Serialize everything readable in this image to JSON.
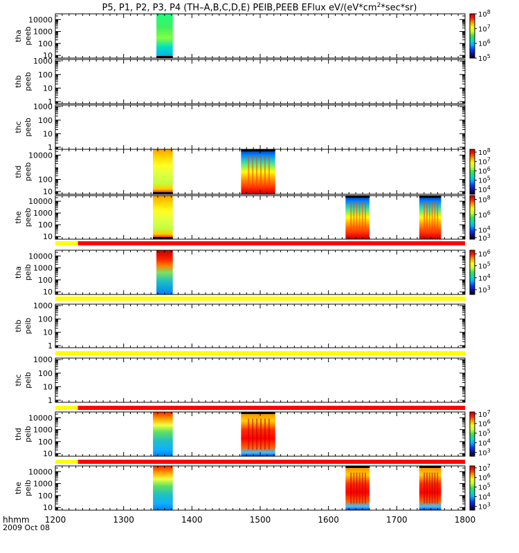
{
  "chart_data": {
    "type": "heatmap",
    "title_parts": [
      "P5, P1, P2, P3, P4 (TH–A,B,C,D,E) PEIB,PEEB EFlux eV/(eV*cm",
      "2",
      "*sec*sr)"
    ],
    "x_tick_labels": [
      "1200",
      "1300",
      "1400",
      "1500",
      "1600",
      "1700",
      "1800"
    ],
    "x_ticks": [
      1200,
      1300,
      1400,
      1500,
      1600,
      1700,
      1800
    ],
    "xlim": [
      1200,
      1800
    ],
    "x_unit_label": "hhmm",
    "date_label": "2009 Oct 08",
    "y_scale": "log",
    "palette": [
      "#000000",
      "#1010a0",
      "#0040ff",
      "#00b0ff",
      "#00e0c0",
      "#40e040",
      "#c0ff40",
      "#ffff00",
      "#ffa000",
      "#ff2000",
      "#c00000"
    ],
    "panels": [
      {
        "id": "tha-peeb",
        "probe": "tha",
        "instrument": "peeb",
        "y_tick_labels": [
          "10000",
          "1000",
          "100",
          "10"
        ],
        "y_ticks": [
          10000,
          1000,
          100,
          10
        ],
        "ylim": [
          6,
          30000
        ],
        "colorbar": {
          "labels": [
            "10",
            "8",
            "10",
            "7",
            "10",
            "6",
            "10",
            "5"
          ],
          "ticks": [
            8,
            7,
            6,
            5
          ],
          "range": [
            5,
            8
          ]
        },
        "mode_bar": null,
        "blocks": [
          {
            "start": 1348,
            "end": 1372,
            "style": "electron"
          }
        ]
      },
      {
        "id": "thb-peeb",
        "probe": "thb",
        "instrument": "peeb",
        "y_tick_labels": [
          "1000",
          "100",
          "10",
          "1"
        ],
        "y_ticks": [
          1000,
          100,
          10,
          1
        ],
        "ylim": [
          0.7,
          1300
        ],
        "colorbar": null,
        "mode_bar": null,
        "blocks": []
      },
      {
        "id": "thc-peeb",
        "probe": "thc",
        "instrument": "peeb",
        "y_tick_labels": [
          "1000",
          "100",
          "10",
          "1"
        ],
        "y_ticks": [
          1000,
          100,
          10,
          1
        ],
        "ylim": [
          0.7,
          1300
        ],
        "colorbar": null,
        "mode_bar": null,
        "blocks": []
      },
      {
        "id": "thd-peeb",
        "probe": "thd",
        "instrument": "peeb",
        "y_tick_labels": [
          "10000",
          "100",
          "10"
        ],
        "y_ticks": [
          10000,
          100,
          10
        ],
        "ylim": [
          6,
          30000
        ],
        "colorbar": {
          "labels": [
            "10",
            "8",
            "10",
            "7",
            "10",
            "6",
            "10",
            "5",
            "10",
            "4"
          ],
          "ticks": [
            8,
            7,
            6,
            5,
            4
          ],
          "range": [
            3.5,
            8.3
          ]
        },
        "mode_bar": null,
        "blocks": [
          {
            "start": 1343,
            "end": 1372,
            "style": "electron"
          },
          {
            "start": 1472,
            "end": 1522,
            "style": "burst"
          }
        ]
      },
      {
        "id": "the-peeb",
        "probe": "the",
        "instrument": "peeb",
        "y_tick_labels": [
          "10000",
          "1000",
          "100",
          "10"
        ],
        "y_ticks": [
          10000,
          1000,
          100,
          10
        ],
        "ylim": [
          6,
          30000
        ],
        "colorbar": {
          "labels": [
            "10",
            "8",
            "10",
            "6",
            "10",
            "4",
            "10",
            "3"
          ],
          "ticks": [
            8,
            6,
            4,
            3
          ],
          "range": [
            2.8,
            8.5
          ]
        },
        "mode_bar": {
          "segments": [
            {
              "start": 1200,
              "end": 1233,
              "color": "#ffff00"
            },
            {
              "start": 1233,
              "end": 1800,
              "color": "#ff0000"
            }
          ]
        },
        "blocks": [
          {
            "start": 1343,
            "end": 1372,
            "style": "electron"
          },
          {
            "start": 1625,
            "end": 1660,
            "style": "burst"
          },
          {
            "start": 1733,
            "end": 1765,
            "style": "burst"
          }
        ]
      },
      {
        "id": "tha-peib",
        "probe": "tha",
        "instrument": "peib",
        "y_tick_labels": [
          "10000",
          "1000",
          "100",
          "10"
        ],
        "y_ticks": [
          10000,
          1000,
          100,
          10
        ],
        "ylim": [
          6,
          30000
        ],
        "colorbar": {
          "labels": [
            "10",
            "6",
            "10",
            "5",
            "10",
            "4",
            "10",
            "3"
          ],
          "ticks": [
            6,
            5,
            4,
            3
          ],
          "range": [
            2.6,
            6.3
          ]
        },
        "mode_bar": {
          "segments": [
            {
              "start": 1200,
              "end": 1800,
              "color": "#ffff00"
            }
          ]
        },
        "blocks": [
          {
            "start": 1348,
            "end": 1372,
            "style": "ion"
          }
        ]
      },
      {
        "id": "thb-peib",
        "probe": "thb",
        "instrument": "peib",
        "y_tick_labels": [
          "1000",
          "100",
          "10",
          "1"
        ],
        "y_ticks": [
          1000,
          100,
          10,
          1
        ],
        "ylim": [
          0.7,
          1300
        ],
        "colorbar": null,
        "mode_bar": {
          "segments": [
            {
              "start": 1200,
              "end": 1800,
              "color": "#ffff00"
            }
          ]
        },
        "blocks": []
      },
      {
        "id": "thc-peib",
        "probe": "thc",
        "instrument": "peib",
        "y_tick_labels": [
          "1000",
          "100",
          "10",
          "1"
        ],
        "y_ticks": [
          1000,
          100,
          10,
          1
        ],
        "ylim": [
          0.7,
          1300
        ],
        "colorbar": null,
        "mode_bar": null,
        "blocks": []
      },
      {
        "id": "thd-peib",
        "probe": "thd",
        "instrument": "peib",
        "y_tick_labels": [
          "10000",
          "1000",
          "100",
          "10"
        ],
        "y_ticks": [
          10000,
          1000,
          100,
          10
        ],
        "ylim": [
          6,
          30000
        ],
        "colorbar": {
          "labels": [
            "10",
            "7",
            "10",
            "6",
            "10",
            "5",
            "10",
            "4",
            "10",
            "3"
          ],
          "ticks": [
            7,
            6,
            5,
            4,
            3
          ],
          "range": [
            2.6,
            7.2
          ]
        },
        "mode_bar": {
          "segments": [
            {
              "start": 1200,
              "end": 1233,
              "color": "#ffff00"
            },
            {
              "start": 1233,
              "end": 1800,
              "color": "#ff0000"
            }
          ]
        },
        "blocks": [
          {
            "start": 1343,
            "end": 1372,
            "style": "ion"
          },
          {
            "start": 1472,
            "end": 1522,
            "style": "ionburst"
          }
        ]
      },
      {
        "id": "the-peib",
        "probe": "the",
        "instrument": "peib",
        "y_tick_labels": [
          "10000",
          "1000",
          "100",
          "10"
        ],
        "y_ticks": [
          10000,
          1000,
          100,
          10
        ],
        "ylim": [
          6,
          30000
        ],
        "colorbar": {
          "labels": [
            "10",
            "7",
            "10",
            "6",
            "10",
            "5",
            "10",
            "4",
            "10",
            "3"
          ],
          "ticks": [
            7,
            6,
            5,
            4,
            3
          ],
          "range": [
            2.6,
            7.2
          ]
        },
        "mode_bar": {
          "segments": [
            {
              "start": 1200,
              "end": 1233,
              "color": "#ffff00"
            },
            {
              "start": 1233,
              "end": 1800,
              "color": "#ff0000"
            }
          ]
        },
        "blocks": [
          {
            "start": 1343,
            "end": 1372,
            "style": "ion"
          },
          {
            "start": 1625,
            "end": 1660,
            "style": "ionburst"
          },
          {
            "start": 1733,
            "end": 1765,
            "style": "ionburst"
          }
        ]
      }
    ]
  }
}
